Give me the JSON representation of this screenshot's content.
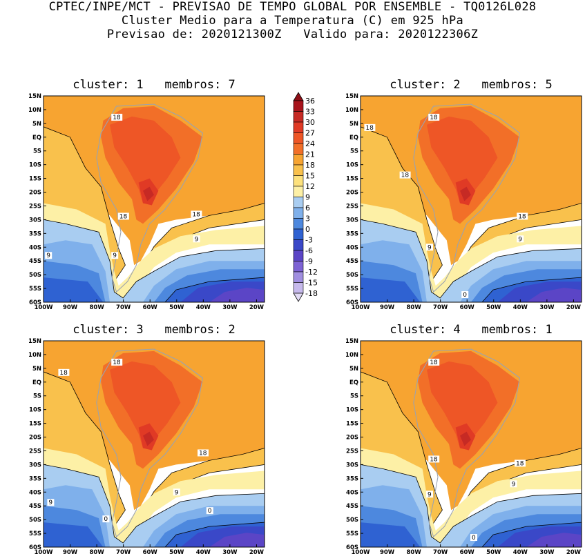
{
  "header": {
    "line1": "CPTEC/INPE/MCT - PREVISAO DE TEMPO GLOBAL POR ENSEMBLE - TQ0126L028",
    "line2": "Cluster Medio para a Temperatura (C) em 925 hPa",
    "line3": "Previsao de: 2020121300Z   Valido para: 2020122306Z"
  },
  "colors": {
    "c36": "#a8141c",
    "c33": "#c62a24",
    "c30": "#e03a25",
    "c27": "#ee5626",
    "c24": "#f26f28",
    "c21": "#f7a431",
    "c18": "#f9c14c",
    "c15": "#fde17c",
    "c12": "#fdf0a6",
    "c9": "#a9cdf1",
    "c6": "#7fb0eb",
    "c3": "#4d88de",
    "c0": "#2f62d2",
    "cm3": "#3a48c8",
    "cm6": "#5b45c6",
    "cm9": "#7d62d4",
    "cm12": "#a08ee0",
    "cm15": "#c6b9ec",
    "cm18": "#e2dbf5",
    "land_outline": "#9aa2b0",
    "contour": "#000000"
  },
  "colorbar": {
    "labels": [
      "36",
      "33",
      "30",
      "27",
      "24",
      "21",
      "18",
      "15",
      "12",
      "9",
      "6",
      "3",
      "0",
      "-3",
      "-6",
      "-9",
      "-12",
      "-15",
      "-18"
    ]
  },
  "axes": {
    "lat_labels": [
      "15N",
      "10N",
      "5N",
      "EQ",
      "5S",
      "10S",
      "15S",
      "20S",
      "25S",
      "30S",
      "35S",
      "40S",
      "45S",
      "50S",
      "55S",
      "60S"
    ],
    "lon_labels": [
      "100W",
      "90W",
      "80W",
      "70W",
      "60W",
      "50W",
      "40W",
      "30W",
      "20W"
    ],
    "lon_range": [
      -100,
      -17
    ],
    "lat_range": [
      -60,
      15
    ]
  },
  "panels": [
    {
      "title": "cluster: 1   membros: 7",
      "labels": [
        "18",
        "18",
        "18",
        "9",
        "9",
        "9"
      ]
    },
    {
      "title": "cluster: 2   membros: 5",
      "labels": [
        "18",
        "18",
        "18",
        "18",
        "9",
        "9",
        "0"
      ]
    },
    {
      "title": "cluster: 3   membros: 2",
      "labels": [
        "18",
        "18",
        "18",
        "9",
        "9",
        "0",
        "0"
      ]
    },
    {
      "title": "cluster: 4   membros: 1",
      "labels": [
        "18",
        "18",
        "18",
        "9",
        "9",
        "0"
      ]
    }
  ],
  "chart_data": {
    "type": "heatmap",
    "title": "Cluster Medio para a Temperatura (C) em 925 hPa",
    "units": "C",
    "contour_levels": [
      -18,
      -15,
      -12,
      -9,
      -6,
      -3,
      0,
      3,
      6,
      9,
      12,
      15,
      18,
      21,
      24,
      27,
      30,
      33,
      36
    ],
    "xlim": [
      -100,
      -17
    ],
    "ylim": [
      -60,
      15
    ],
    "panels": [
      {
        "cluster": 1,
        "membros": 7
      },
      {
        "cluster": 2,
        "membros": 5
      },
      {
        "cluster": 3,
        "membros": 2
      },
      {
        "cluster": 4,
        "membros": 1
      }
    ]
  }
}
